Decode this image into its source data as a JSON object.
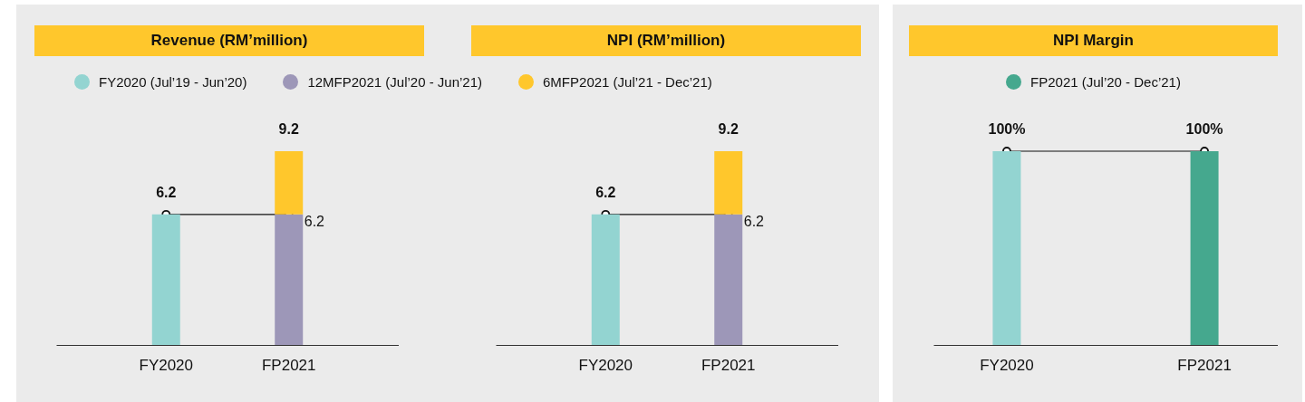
{
  "chart_data": [
    {
      "type": "bar",
      "title": "Revenue (RM’million)",
      "categories": [
        "FY2020",
        "FP2021"
      ],
      "stacked": true,
      "legend": "top",
      "tick_labels": "x",
      "grid": false,
      "totals": [
        null,
        "9.2"
      ],
      "series": [
        {
          "name": "FY2020 (Jul’19 - Jun’20)",
          "color": "#93d4d1",
          "values": [
            6.2,
            null
          ],
          "value_labels": [
            "6.2",
            null
          ]
        },
        {
          "name": "12MFP2021 (Jul’20 - Jun’21)",
          "color": "#9d97b8",
          "values": [
            null,
            6.2
          ],
          "value_labels": [
            null,
            "6.2"
          ]
        },
        {
          "name": "6MFP2021 (Jul’21 - Dec’21)",
          "color": "#ffc72c",
          "values": [
            null,
            3.0
          ]
        }
      ]
    },
    {
      "type": "bar",
      "title": "NPI (RM’million)",
      "categories": [
        "FY2020",
        "FP2021"
      ],
      "stacked": true,
      "tick_labels": "x",
      "grid": false,
      "totals": [
        null,
        "9.2"
      ],
      "series": [
        {
          "color": "#93d4d1",
          "values": [
            6.2,
            null
          ],
          "value_labels": [
            "6.2",
            null
          ]
        },
        {
          "color": "#9d97b8",
          "values": [
            null,
            6.2
          ],
          "value_labels": [
            null,
            "6.2"
          ]
        },
        {
          "color": "#ffc72c",
          "values": [
            null,
            3.0
          ]
        }
      ]
    },
    {
      "type": "bar",
      "title": "NPI Margin",
      "categories": [
        "FY2020",
        "FP2021"
      ],
      "legend": "top",
      "tick_labels": "x",
      "grid": false,
      "series": [
        {
          "name": "FP2021 (Jul’20 - Dec’21)",
          "color": "#45a88e",
          "colors": [
            "#93d4d1",
            "#45a88e"
          ],
          "values": [
            100,
            100
          ],
          "value_labels": [
            "100%",
            "100%"
          ]
        }
      ]
    }
  ]
}
